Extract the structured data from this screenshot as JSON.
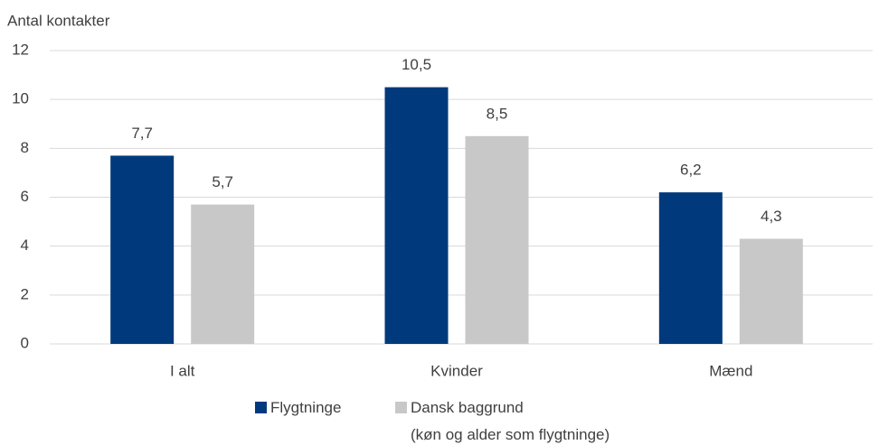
{
  "chart_data": {
    "type": "bar",
    "y_label": "Antal kontakter",
    "categories": [
      "I alt",
      "Kvinder",
      "Mænd"
    ],
    "series": [
      {
        "name": "Flygtninge",
        "color": "#003a7d",
        "values": [
          7.7,
          10.5,
          6.2
        ],
        "value_labels": [
          "7,7",
          "10,5",
          "6,2"
        ]
      },
      {
        "name": "Dansk baggrund\n(køn og alder som flygtninge)",
        "color": "#c8c8c8",
        "values": [
          5.7,
          8.5,
          4.3
        ],
        "value_labels": [
          "5,7",
          "8,5",
          "4,3"
        ]
      }
    ],
    "ylim": [
      0,
      12
    ],
    "yticks": [
      0,
      2,
      4,
      6,
      8,
      10,
      12
    ],
    "grid": true,
    "legend": "bottom"
  }
}
